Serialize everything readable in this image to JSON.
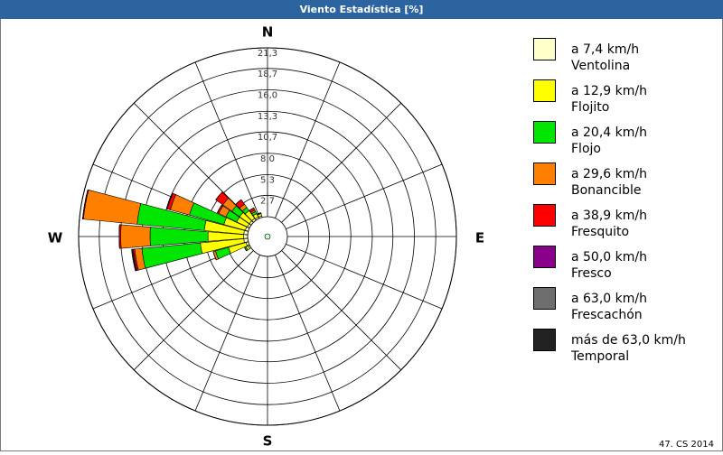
{
  "chart_data": {
    "type": "wind_rose",
    "title": "Viento Estadística [%]",
    "compass": [
      "N",
      "E",
      "S",
      "W"
    ],
    "directions": [
      240,
      250,
      260,
      270,
      280,
      290,
      300,
      310,
      320,
      330,
      340
    ],
    "series": [
      {
        "name": "a 7,4 km/h",
        "description": "Ventolina",
        "color": "#ffffc8",
        "values": [
          0.2,
          0.3,
          0.5,
          0.5,
          0.5,
          0.4,
          0.3,
          0.3,
          0.3,
          0.2,
          0.2
        ]
      },
      {
        "name": "a 12,9 km/h",
        "description": "Flojito",
        "color": "#ffff00",
        "values": [
          0.3,
          2.3,
          5.5,
          4.5,
          5.0,
          2.8,
          1.5,
          1.5,
          1.2,
          0.5,
          0.3
        ]
      },
      {
        "name": "a 20,4 km/h",
        "description": "Flojo",
        "color": "#00e600",
        "values": [
          0.2,
          1.7,
          7.4,
          7.3,
          8.5,
          4.5,
          1.5,
          1.2,
          0.5,
          0.3,
          0.1
        ]
      },
      {
        "name": "a 29,6 km/h",
        "description": "Bonancible",
        "color": "#ff8000",
        "values": [
          0,
          0.3,
          0.9,
          3.7,
          6.8,
          2.5,
          1.0,
          1.4,
          0.5,
          0.2,
          0
        ]
      },
      {
        "name": "a 38,9 km/h",
        "description": "Fresquito",
        "color": "#ff0000",
        "values": [
          0,
          0,
          0.2,
          0.2,
          0.1,
          0.4,
          0.2,
          1.1,
          0.7,
          0.3,
          0
        ]
      },
      {
        "name": "a 50,0 km/h",
        "description": "Fresco",
        "color": "#8b008b",
        "values": [
          0,
          0,
          0.1,
          0,
          0,
          0.1,
          0,
          0,
          0,
          0,
          0
        ]
      },
      {
        "name": "a 63,0 km/h",
        "description": "Frescachón",
        "color": "#6e6e6e",
        "values": [
          0,
          0,
          0.1,
          0,
          0,
          0,
          0,
          0,
          0,
          0,
          0
        ]
      },
      {
        "name": "más de 63,0 km/h",
        "description": "Temporal",
        "color": "#222222",
        "values": [
          0,
          0,
          0,
          0,
          0,
          0,
          0,
          0,
          0,
          0,
          0
        ]
      }
    ],
    "ylim": [
      0,
      21.3
    ],
    "yticks": [
      {
        "value": 2.7,
        "label": "2,7"
      },
      {
        "value": 5.3,
        "label": "5,3"
      },
      {
        "value": 8.0,
        "label": "8,0"
      },
      {
        "value": 10.7,
        "label": "10,7"
      },
      {
        "value": 13.3,
        "label": "13,3"
      },
      {
        "value": 16.0,
        "label": "16,0"
      },
      {
        "value": 18.7,
        "label": "18,7"
      },
      {
        "value": 21.3,
        "label": "21,3"
      }
    ],
    "footer": "47. CS 2014"
  }
}
